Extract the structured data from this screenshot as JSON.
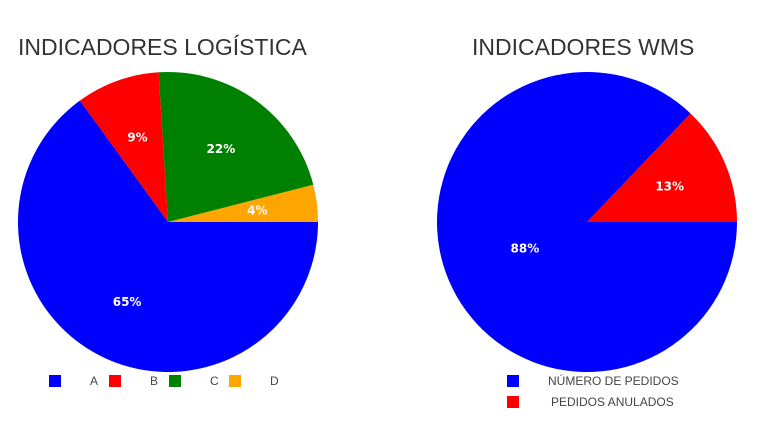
{
  "chart_data": [
    {
      "type": "pie",
      "title": "INDICADORES LOGÍSTICA",
      "categories": [
        "A",
        "B",
        "C",
        "D"
      ],
      "values": [
        65,
        9,
        22,
        4
      ],
      "labels": [
        "65%",
        "9%",
        "22%",
        "4%"
      ],
      "colors": [
        "#0000ff",
        "#ff0000",
        "#008000",
        "#ffa500"
      ],
      "legend_position": "bottom"
    },
    {
      "type": "pie",
      "title": "INDICADORES WMS",
      "categories": [
        "NÚMERO DE PEDIDOS",
        "PEDIDOS ANULADOS"
      ],
      "values": [
        88,
        13
      ],
      "labels": [
        "88%",
        "13%"
      ],
      "colors": [
        "#0000ff",
        "#ff0000"
      ],
      "legend_position": "bottom"
    }
  ]
}
